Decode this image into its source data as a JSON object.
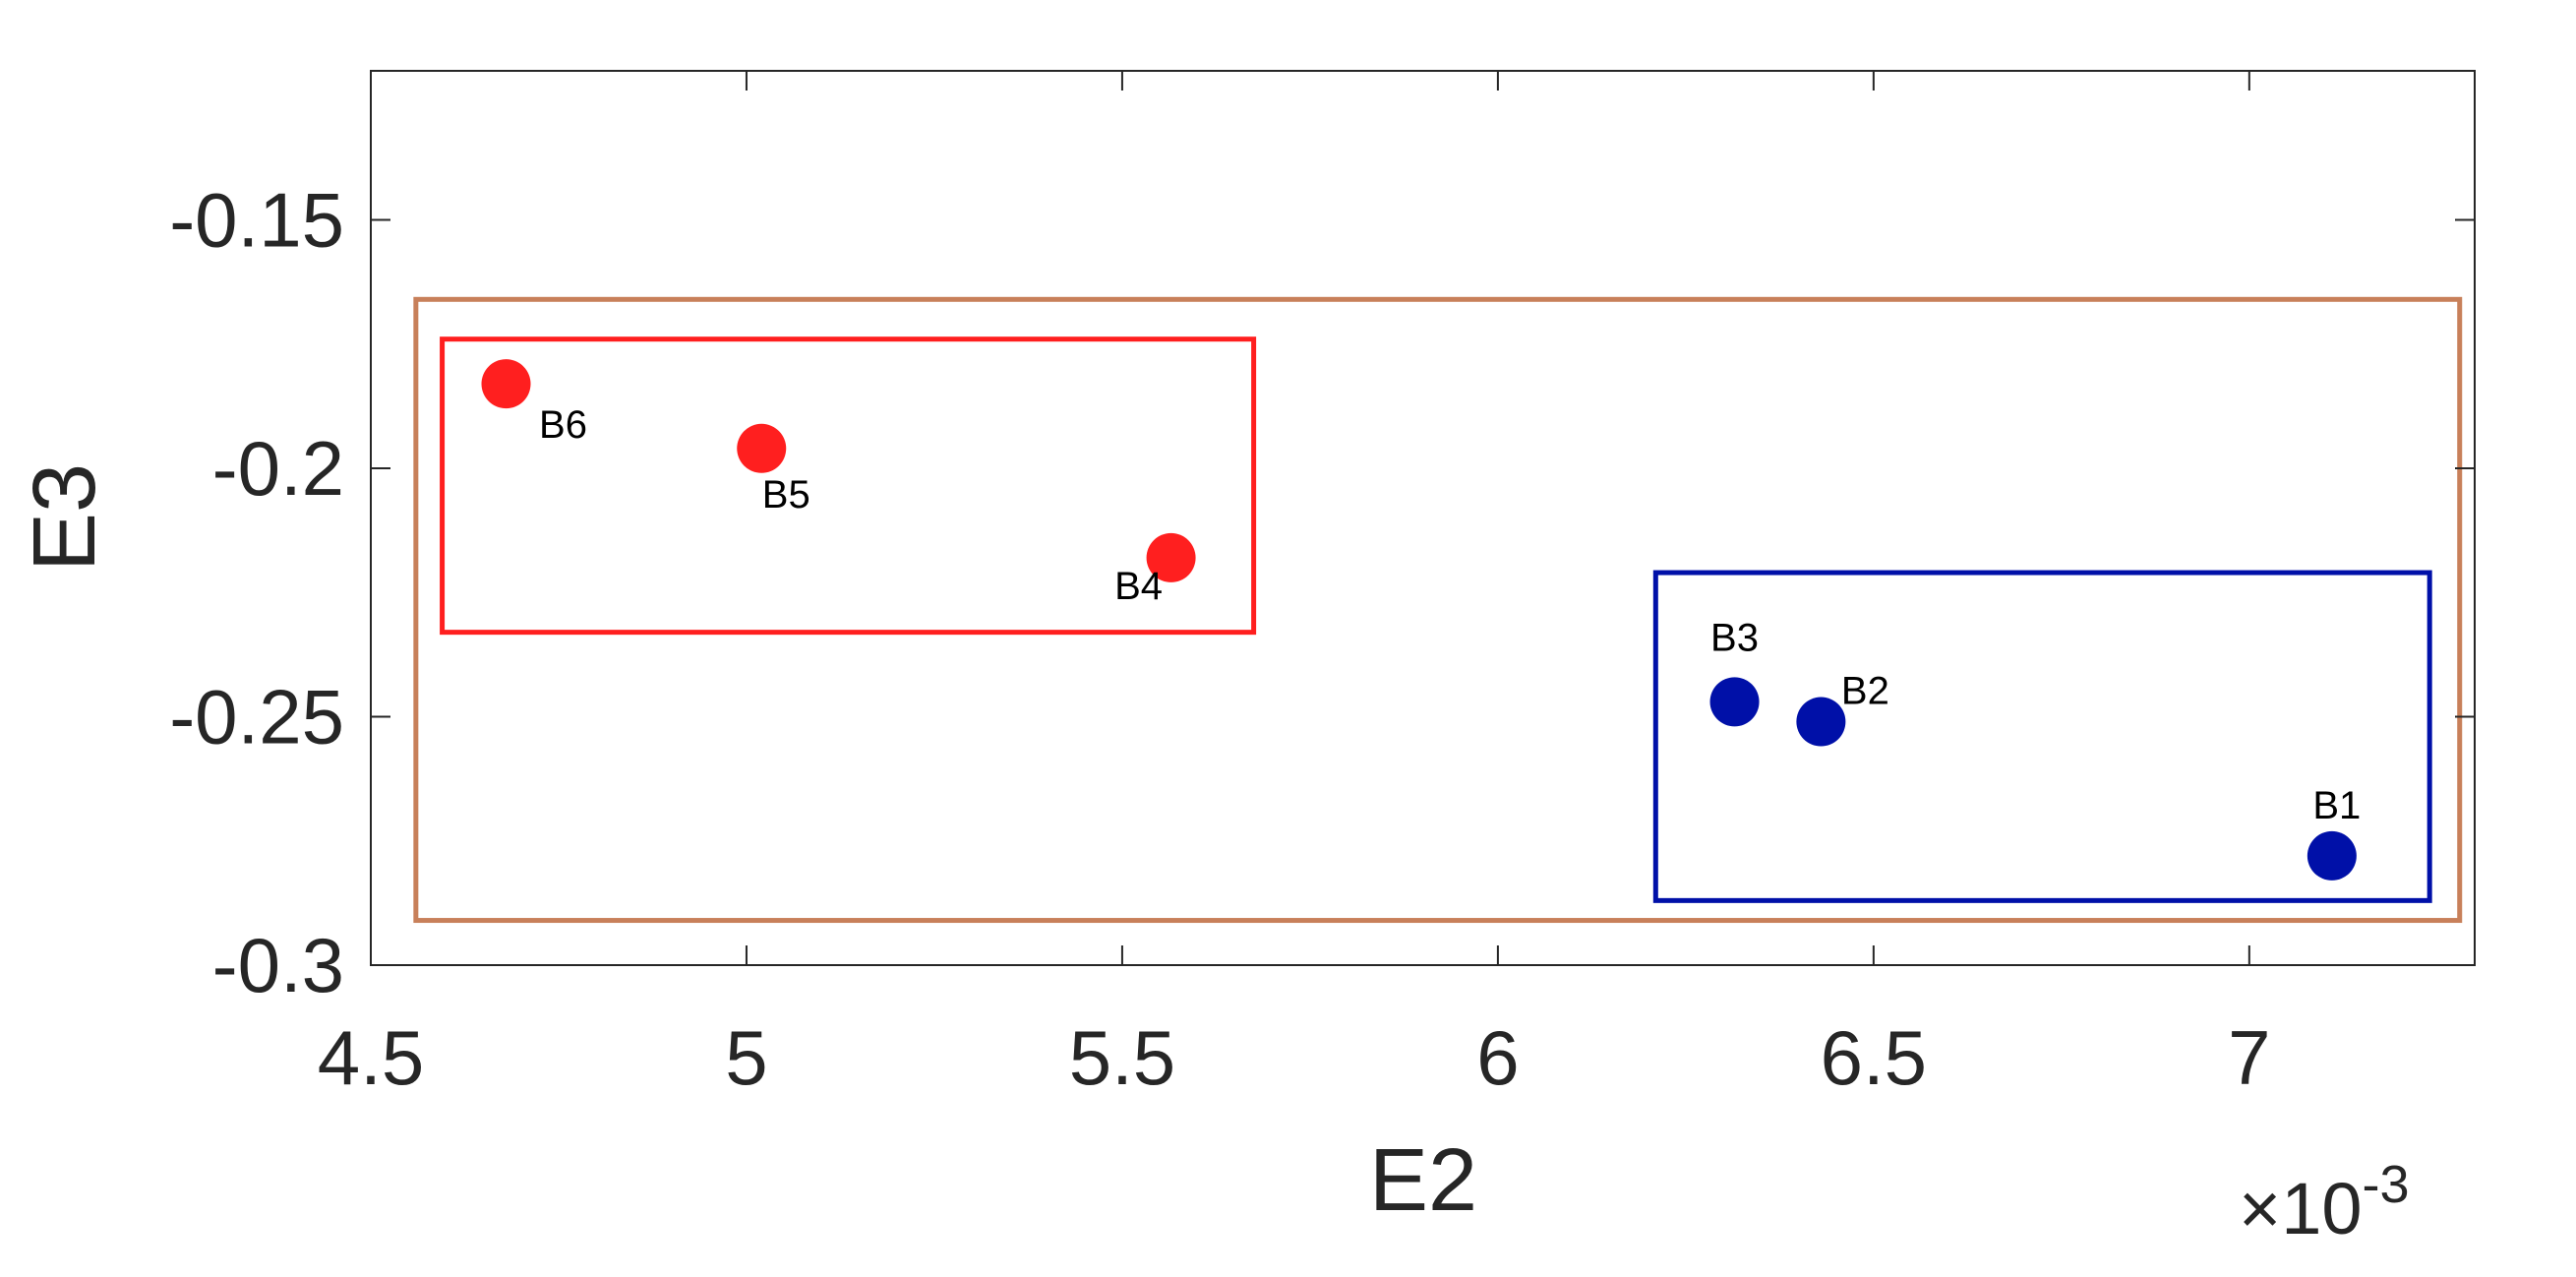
{
  "chart_data": {
    "type": "scatter",
    "xlabel": "E2",
    "ylabel": "E3",
    "x_multiplier": {
      "base": "×10",
      "exponent": "-3"
    },
    "xlim": [
      4.5,
      7.3
    ],
    "ylim": [
      -0.3,
      -0.12
    ],
    "xticks": [
      4.5,
      5,
      5.5,
      6,
      6.5,
      7
    ],
    "xtick_labels": [
      "4.5",
      "5",
      "5.5",
      "6",
      "6.5",
      "7"
    ],
    "yticks": [
      -0.15,
      -0.2,
      -0.25,
      -0.3
    ],
    "ytick_labels": [
      "-0.15",
      "-0.2",
      "-0.25",
      "-0.3"
    ],
    "grid": false,
    "series": [
      {
        "color": "#ff1f1f",
        "points": [
          {
            "label": "B6",
            "x": 4.68,
            "y": -0.183
          },
          {
            "label": "B5",
            "x": 5.02,
            "y": -0.196
          },
          {
            "label": "B4",
            "x": 5.565,
            "y": -0.218
          }
        ]
      },
      {
        "color": "#0010a8",
        "points": [
          {
            "label": "B3",
            "x": 6.315,
            "y": -0.247
          },
          {
            "label": "B2",
            "x": 6.43,
            "y": -0.251
          },
          {
            "label": "B1",
            "x": 7.11,
            "y": -0.278
          }
        ]
      }
    ],
    "annotations": [
      {
        "shape": "rectangle",
        "color": "#c8805a",
        "x": [
          4.56,
          7.28
        ],
        "y": [
          -0.291,
          -0.166
        ]
      },
      {
        "shape": "rectangle",
        "color": "#ff1f1f",
        "x": [
          4.595,
          5.675
        ],
        "y": [
          -0.233,
          -0.174
        ]
      },
      {
        "shape": "rectangle",
        "color": "#0010a8",
        "x": [
          6.21,
          7.24
        ],
        "y": [
          -0.287,
          -0.221
        ]
      }
    ]
  }
}
